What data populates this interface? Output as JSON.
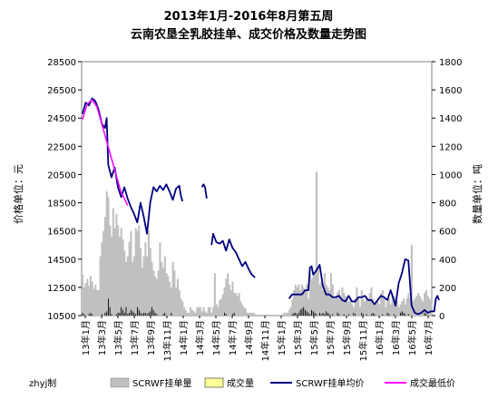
{
  "chart_data": {
    "type": "bar+line",
    "title": "2013年1月-2016年8月第五周",
    "subtitle": "云南农垦全乳胶挂单、成交价格及数量走势图",
    "ylabel_left": "价格单位：元",
    "ylabel_right": "数量单位：吨",
    "left_axis": {
      "min": 10500,
      "max": 28500,
      "ticks": [
        10500,
        12500,
        14500,
        16500,
        18500,
        20500,
        22500,
        24500,
        26500,
        28500
      ]
    },
    "right_axis": {
      "min": 0,
      "max": 1800,
      "ticks": [
        0,
        200,
        400,
        600,
        800,
        1000,
        1200,
        1400,
        1600,
        1800
      ]
    },
    "x_labels": [
      "13年1月",
      "13年3月",
      "13年5月",
      "13年7月",
      "13年9月",
      "13年11月",
      "14年1月",
      "14年3月",
      "14年5月",
      "14年7月",
      "14年9月",
      "14年11月",
      "15年1月",
      "15年3月",
      "15年5月",
      "15年7月",
      "15年9月",
      "15年11月",
      "16年1月",
      "16年3月",
      "16年5月",
      "16年7月"
    ],
    "source_note": "zhyj制",
    "legend": [
      "SCRWF挂单量",
      "成交量",
      "SCRWF挂单均价",
      "成交最低价"
    ],
    "colors": {
      "listing_volume": "#c0c0c0",
      "deal_volume": "#ffff99",
      "deal_volume_line": "#000000",
      "listing_avg_price": "#000080",
      "deal_min_price": "#ff00ff"
    },
    "series": [
      {
        "name": "SCRWF挂单均价",
        "axis": "left",
        "points": [
          [
            0,
            24800
          ],
          [
            2,
            25600
          ],
          [
            4,
            25400
          ],
          [
            6,
            25900
          ],
          [
            8,
            25700
          ],
          [
            10,
            25100
          ],
          [
            12,
            24100
          ],
          [
            14,
            23800
          ],
          [
            15,
            24500
          ],
          [
            16,
            21200
          ],
          [
            18,
            20300
          ],
          [
            20,
            21000
          ],
          [
            22,
            19600
          ],
          [
            24,
            18900
          ],
          [
            26,
            19600
          ],
          [
            28,
            18800
          ],
          [
            30,
            18200
          ],
          [
            32,
            17700
          ],
          [
            34,
            17100
          ],
          [
            36,
            18500
          ],
          [
            38,
            17500
          ],
          [
            40,
            16300
          ],
          [
            42,
            18500
          ],
          [
            44,
            19600
          ],
          [
            46,
            19300
          ],
          [
            48,
            19700
          ],
          [
            50,
            19400
          ],
          [
            52,
            19800
          ],
          [
            54,
            19300
          ],
          [
            56,
            18700
          ],
          [
            58,
            19500
          ],
          [
            60,
            19700
          ],
          [
            61,
            19000
          ],
          [
            62,
            18600
          ]
        ]
      },
      {
        "name": "SCRWF挂单均价",
        "axis": "left",
        "points": [
          [
            74,
            19600
          ],
          [
            75,
            19800
          ],
          [
            76,
            19600
          ],
          [
            77,
            18800
          ]
        ]
      },
      {
        "name": "SCRWF挂单均价",
        "axis": "left",
        "points": [
          [
            80,
            15500
          ],
          [
            81,
            16300
          ],
          [
            83,
            15700
          ],
          [
            85,
            15600
          ],
          [
            87,
            15800
          ],
          [
            89,
            15100
          ],
          [
            91,
            15900
          ],
          [
            93,
            15300
          ],
          [
            95,
            15000
          ],
          [
            97,
            14500
          ],
          [
            99,
            14000
          ],
          [
            101,
            14300
          ],
          [
            103,
            13800
          ],
          [
            105,
            13400
          ],
          [
            107,
            13200
          ]
        ]
      },
      {
        "name": "SCRWF挂单均价",
        "axis": "left",
        "points": [
          [
            128,
            11700
          ],
          [
            130,
            12000
          ],
          [
            133,
            12000
          ],
          [
            136,
            12000
          ],
          [
            138,
            12300
          ],
          [
            140,
            12300
          ],
          [
            141,
            13900
          ],
          [
            142,
            14000
          ],
          [
            143,
            13400
          ],
          [
            145,
            13700
          ],
          [
            147,
            14100
          ],
          [
            149,
            12600
          ],
          [
            151,
            12000
          ],
          [
            153,
            12000
          ],
          [
            155,
            11800
          ],
          [
            157,
            11800
          ],
          [
            159,
            11900
          ],
          [
            161,
            11600
          ],
          [
            163,
            11500
          ],
          [
            165,
            11900
          ],
          [
            167,
            11500
          ],
          [
            169,
            11500
          ],
          [
            171,
            11800
          ],
          [
            173,
            11800
          ],
          [
            175,
            11900
          ],
          [
            177,
            11600
          ],
          [
            179,
            11600
          ],
          [
            181,
            11300
          ],
          [
            183,
            11600
          ],
          [
            185,
            11900
          ],
          [
            187,
            11800
          ],
          [
            189,
            11600
          ],
          [
            191,
            12300
          ],
          [
            193,
            11600
          ],
          [
            194,
            11200
          ],
          [
            196,
            12800
          ],
          [
            198,
            13500
          ],
          [
            200,
            14500
          ],
          [
            202,
            14400
          ],
          [
            204,
            11200
          ],
          [
            206,
            10700
          ],
          [
            208,
            10600
          ],
          [
            210,
            10700
          ],
          [
            212,
            10900
          ],
          [
            214,
            10700
          ],
          [
            216,
            10800
          ],
          [
            218,
            10800
          ],
          [
            219,
            11700
          ],
          [
            220,
            11900
          ],
          [
            221,
            11600
          ]
        ]
      },
      {
        "name": "成交最低价",
        "axis": "left",
        "points": [
          [
            0,
            24400
          ],
          [
            3,
            25500
          ],
          [
            6,
            25800
          ],
          [
            9,
            25300
          ],
          [
            24,
            19200
          ],
          [
            26,
            18800
          ],
          [
            28,
            18300
          ]
        ]
      }
    ],
    "bar_series": [
      {
        "name": "SCRWF挂单量",
        "axis": "right",
        "values": [
          290,
          200,
          230,
          260,
          210,
          280,
          240,
          190,
          220,
          180,
          180,
          420,
          520,
          600,
          700,
          880,
          840,
          640,
          560,
          760,
          620,
          720,
          640,
          560,
          620,
          540,
          460,
          380,
          420,
          520,
          600,
          380,
          420,
          620,
          600,
          640,
          480,
          340,
          420,
          520,
          420,
          600,
          480,
          380,
          320,
          280,
          260,
          320,
          520,
          380,
          340,
          420,
          300,
          280,
          240,
          200,
          380,
          320,
          200,
          260,
          180,
          120,
          100,
          60,
          40,
          20,
          20,
          60,
          40,
          30,
          20,
          60,
          60,
          60,
          30,
          60,
          30,
          20,
          60,
          60,
          20,
          60,
          300,
          80,
          60,
          110,
          120,
          150,
          200,
          260,
          300,
          220,
          180,
          240,
          160,
          160,
          140,
          160,
          100,
          80,
          60,
          50,
          20,
          20,
          20,
          20,
          20,
          10,
          0,
          0,
          0,
          0,
          0,
          0,
          0,
          0,
          0,
          0,
          0,
          0,
          0,
          0,
          0,
          0,
          10,
          20,
          20,
          20,
          40,
          60,
          110,
          180,
          220,
          200,
          220,
          180,
          220,
          200,
          180,
          220,
          120,
          300,
          260,
          280,
          300,
          1020,
          340,
          220,
          240,
          180,
          300,
          220,
          200,
          180,
          300,
          220,
          120,
          140,
          160,
          180,
          120,
          200,
          160,
          140,
          120,
          100,
          120,
          80,
          60,
          120,
          200,
          120,
          60,
          180,
          120,
          100,
          140,
          120,
          160,
          200,
          120,
          80,
          100,
          120,
          80,
          160,
          180,
          120,
          60,
          100,
          120,
          80,
          160,
          140,
          120,
          100,
          60,
          80,
          100,
          120,
          80,
          120,
          160,
          120,
          500,
          100,
          120,
          140,
          160,
          140,
          120,
          100,
          160,
          180,
          140,
          120,
          100
        ],
        "deal_values": [
          20,
          10,
          0,
          0,
          10,
          20,
          10,
          0,
          0,
          0,
          0,
          0,
          10,
          0,
          20,
          30,
          120,
          60,
          10,
          0,
          0,
          10,
          20,
          20,
          60,
          40,
          20,
          60,
          10,
          20,
          40,
          30,
          20,
          10,
          60,
          40,
          20,
          10,
          20,
          20,
          10,
          20,
          30,
          60,
          40,
          20,
          10,
          0,
          0,
          0,
          10,
          20,
          0,
          0,
          0,
          20,
          0,
          0,
          0,
          0,
          0,
          0,
          0,
          0,
          0,
          0,
          0,
          0,
          0,
          0,
          0,
          0,
          0,
          0,
          0,
          0,
          0,
          0,
          0,
          0,
          0,
          0,
          0,
          0,
          0,
          0,
          0,
          0,
          20,
          10,
          0,
          0,
          0,
          10,
          20,
          0,
          0,
          0,
          0,
          0,
          0,
          0,
          0,
          0,
          0,
          0,
          0,
          0,
          0,
          0,
          0,
          0,
          0,
          0,
          0,
          0,
          0,
          0,
          0,
          0,
          0,
          0,
          0,
          0,
          0,
          0,
          0,
          0,
          0,
          0,
          10,
          20,
          20,
          10,
          20,
          40,
          50,
          60,
          40,
          30,
          20,
          10,
          40,
          30,
          20,
          10,
          0,
          20,
          10,
          20,
          10,
          30,
          20,
          10,
          0,
          10,
          0,
          0,
          20,
          10,
          0,
          0,
          10,
          0,
          0,
          10,
          0,
          0,
          20,
          10,
          0,
          0,
          0,
          20,
          10,
          0,
          10,
          0,
          0,
          10,
          20,
          10,
          0,
          0,
          0,
          0,
          10,
          0,
          0,
          20,
          10,
          0,
          0,
          10,
          0,
          0,
          0,
          20,
          30,
          20,
          10,
          0,
          10,
          0,
          0,
          0,
          0,
          0,
          0,
          0,
          0,
          0,
          20,
          10,
          0,
          0,
          0,
          0,
          0
        ]
      }
    ]
  }
}
